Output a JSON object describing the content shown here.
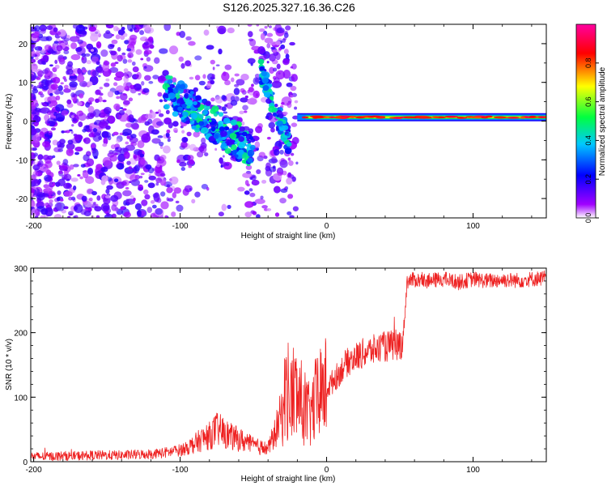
{
  "figure_title": "S126.2025.327.16.36.C26",
  "chart_data": [
    {
      "type": "heatmap",
      "title": "S126.2025.327.16.36.C26",
      "xlabel": "Height of straight line (km)",
      "ylabel": "Frequency (Hz)",
      "xlim": [
        -202,
        150
      ],
      "ylim": [
        -25,
        25
      ],
      "xticks": [
        -200,
        -100,
        0,
        100
      ],
      "xtick_labels": [
        "-200",
        "-100",
        "0",
        "100"
      ],
      "yticks": [
        -20,
        -10,
        0,
        10,
        20
      ],
      "ytick_labels": [
        "-20",
        "-10",
        "0",
        "10",
        "20"
      ],
      "colorbar": {
        "label": "Normalized spectral amplitude",
        "range": [
          0,
          1
        ],
        "ticks": [
          0.0,
          0.2,
          0.4,
          0.6,
          0.8
        ],
        "tick_labels": [
          "0.0",
          "0.2",
          "0.4",
          "0.6",
          "0.8"
        ],
        "colors": [
          "#ffffff",
          "#a000ff",
          "#0000ff",
          "#00c8ff",
          "#00ff40",
          "#ffff00",
          "#ff0000",
          "#ff00a0"
        ]
      },
      "features": [
        {
          "name": "scattered noise",
          "x_range": [
            -202,
            -20
          ],
          "freq_range": [
            -25,
            25
          ],
          "amplitude": 0.1
        },
        {
          "name": "descending streak",
          "x_range": [
            -110,
            -50
          ],
          "freq_range": [
            8,
            -8
          ],
          "amplitude": 0.25
        },
        {
          "name": "secondary streak",
          "x_range": [
            -45,
            -25
          ],
          "freq_range": [
            13,
            -6
          ],
          "amplitude": 0.25
        },
        {
          "name": "steady carrier",
          "x_range": [
            -20,
            150
          ],
          "freq_range": [
            1,
            1
          ],
          "amplitude": 0.7
        }
      ]
    },
    {
      "type": "line",
      "title": "",
      "xlabel": "Height of straight line (km)",
      "ylabel": "SNR (10 * v/v)",
      "xlim": [
        -202,
        150
      ],
      "ylim": [
        0,
        300
      ],
      "xticks": [
        -200,
        -100,
        0,
        100
      ],
      "xtick_labels": [
        "-200",
        "-100",
        "0",
        "100"
      ],
      "yticks": [
        0,
        100,
        200,
        300
      ],
      "ytick_labels": [
        "0",
        "100",
        "200",
        "300"
      ],
      "line_color": "#ee2222",
      "series": [
        {
          "name": "SNR",
          "x": [
            -202,
            -190,
            -180,
            -170,
            -160,
            -150,
            -140,
            -130,
            -120,
            -110,
            -100,
            -95,
            -90,
            -85,
            -80,
            -75,
            -70,
            -65,
            -60,
            -55,
            -50,
            -45,
            -40,
            -35,
            -30,
            -27,
            -25,
            -22,
            -20,
            -17,
            -15,
            -12,
            -10,
            -7,
            -5,
            -2,
            0,
            3,
            5,
            8,
            10,
            12,
            15,
            18,
            20,
            25,
            30,
            35,
            40,
            45,
            50,
            52,
            55,
            60,
            70,
            80,
            90,
            100,
            110,
            120,
            130,
            140,
            150
          ],
          "y": [
            8,
            8,
            9,
            9,
            10,
            10,
            10,
            11,
            12,
            14,
            18,
            22,
            28,
            35,
            40,
            50,
            45,
            38,
            35,
            30,
            25,
            22,
            20,
            45,
            80,
            120,
            95,
            110,
            100,
            90,
            85,
            70,
            80,
            95,
            100,
            110,
            115,
            120,
            128,
            135,
            142,
            150,
            155,
            160,
            162,
            168,
            172,
            175,
            178,
            180,
            182,
            185,
            280,
            282,
            280,
            283,
            278,
            283,
            280,
            282,
            281,
            283,
            285
          ]
        }
      ]
    }
  ]
}
